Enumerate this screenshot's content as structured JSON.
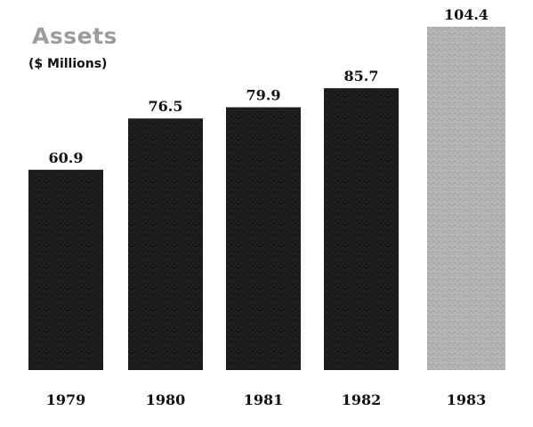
{
  "chart_data": {
    "type": "bar",
    "title": "Assets",
    "subtitle": "($ Millions)",
    "categories": [
      "1979",
      "1980",
      "1981",
      "1982",
      "1983"
    ],
    "values": [
      60.9,
      76.5,
      79.9,
      85.7,
      104.4
    ],
    "value_labels": [
      "60.9",
      "76.5",
      "79.9",
      "85.7",
      "104.4"
    ],
    "bar_colors": [
      "#1b1b1b",
      "#1b1b1b",
      "#1b1b1b",
      "#1b1b1b",
      "#b3b3b3"
    ],
    "xlabel": "",
    "ylabel": "",
    "grid": false,
    "legend": "none"
  }
}
